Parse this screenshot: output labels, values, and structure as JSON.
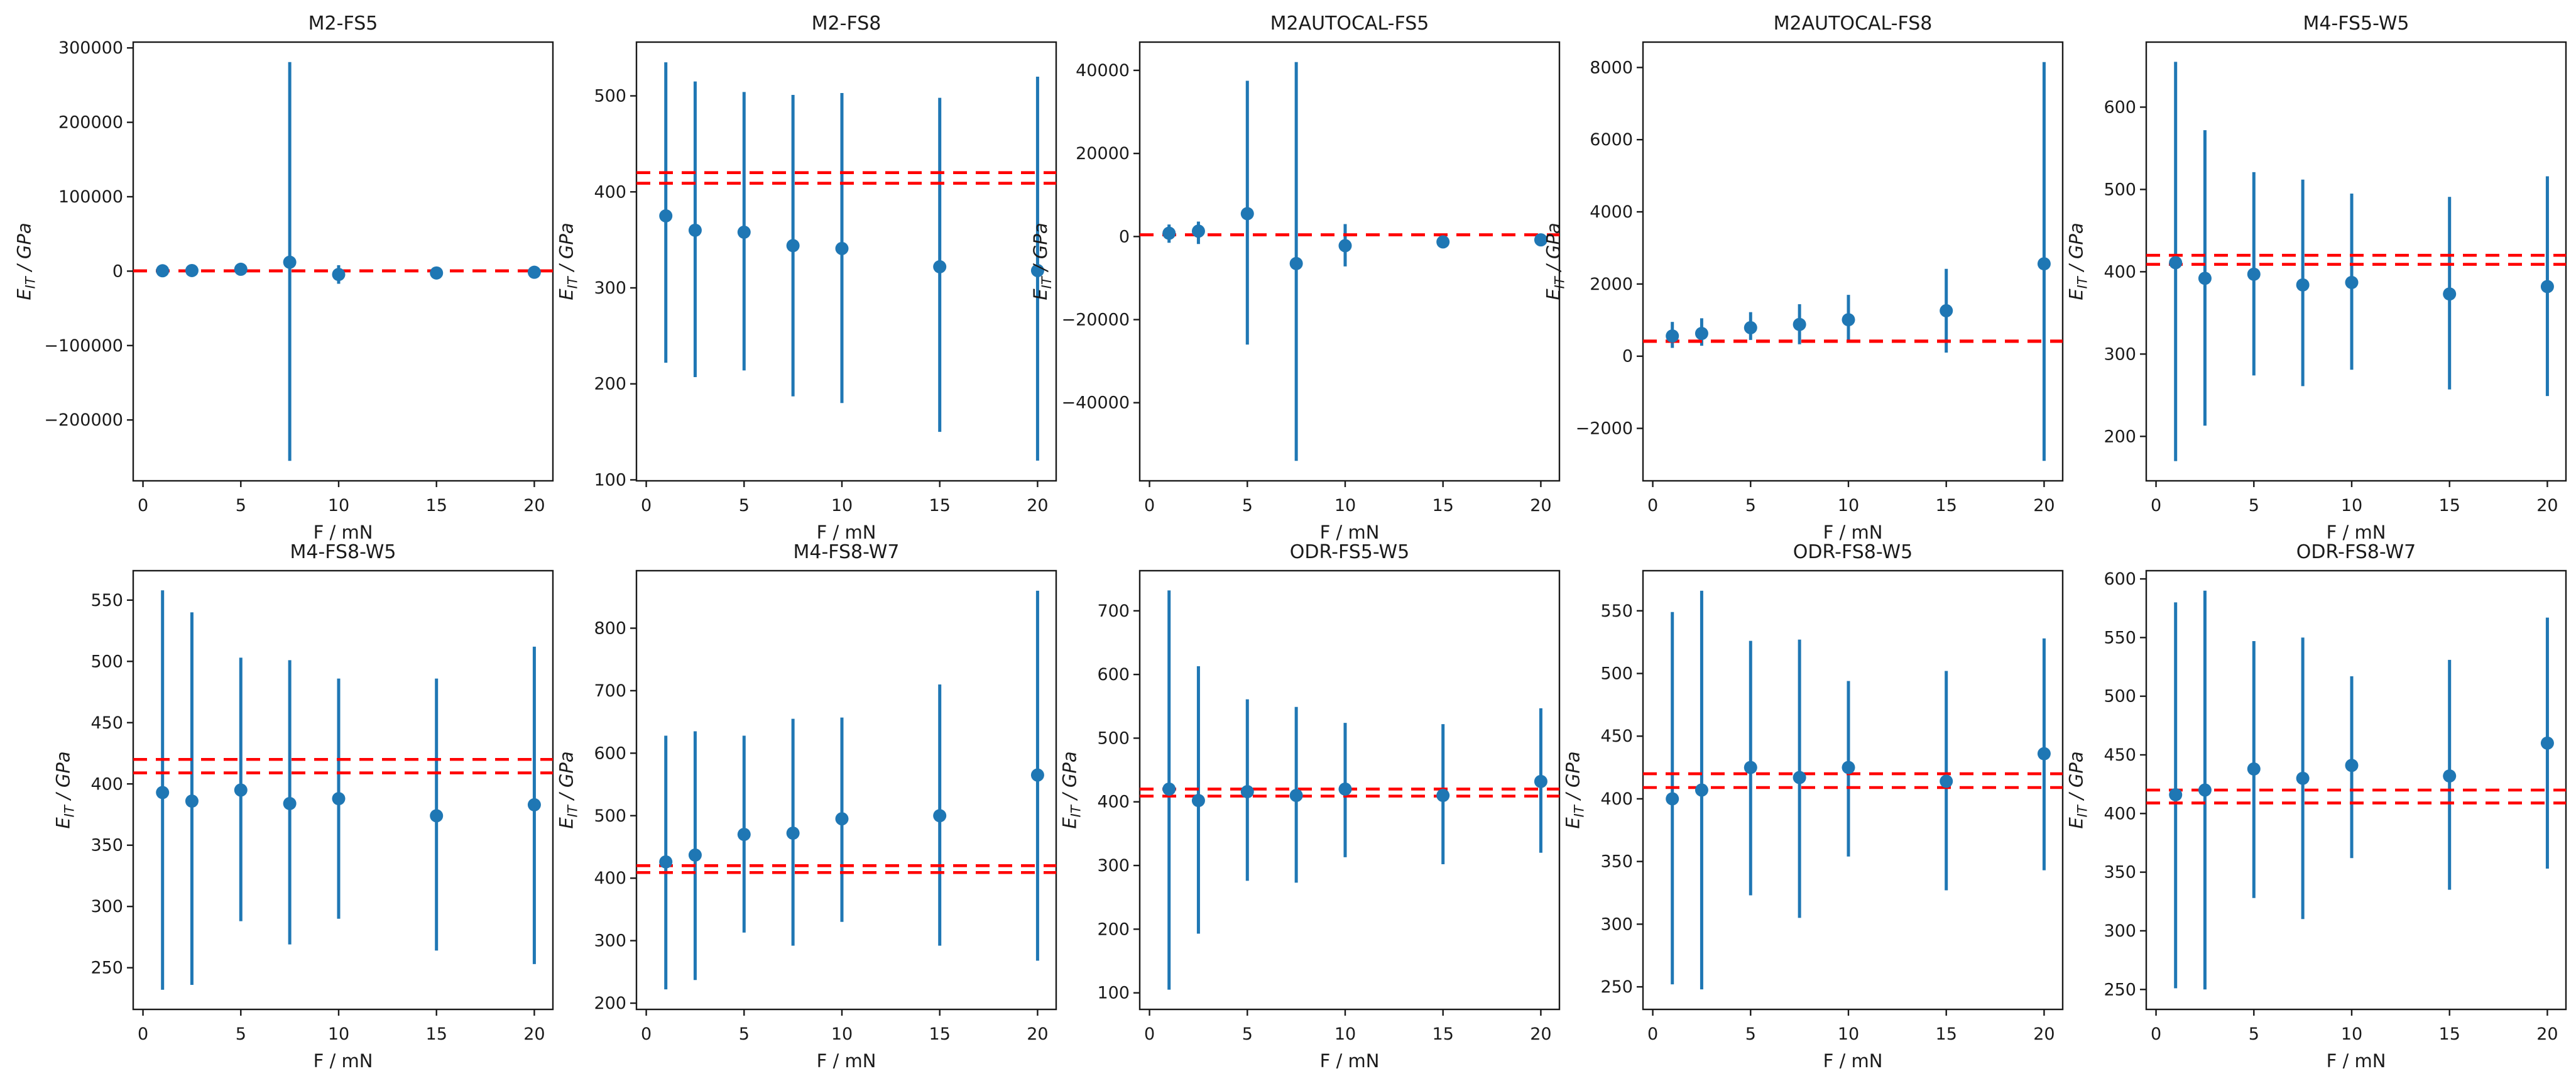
{
  "figure": {
    "kind": "matplotlib-errorbar-grid",
    "rows": 2,
    "cols": 5,
    "xlabel": "F / mN",
    "ylabel_main": "E",
    "ylabel_sub": "IT",
    "ylabel_rest": " / GPa",
    "colors": {
      "marker_blue": "#1f77b4",
      "ref_red": "#ff0000",
      "axis_black": "#1a1a1a",
      "background": "#ffffff"
    },
    "x_ticks": [
      0,
      5,
      10,
      15,
      20
    ],
    "xlim": [
      -0.5,
      20.95
    ],
    "ref_lines": [
      409,
      420
    ]
  },
  "chart_data": [
    {
      "type": "scatter",
      "title": "M2-FS5",
      "xlabel": "F / mN",
      "ylabel": "E_IT / GPa",
      "x": [
        1,
        2.5,
        5,
        7.5,
        10,
        15,
        20
      ],
      "y": [
        500,
        800,
        2500,
        12000,
        -4500,
        -2500,
        -1500
      ],
      "y_err_low": [
        -2500,
        -2500,
        -4000,
        -255000,
        -17000,
        -6000,
        -5500
      ],
      "y_err_high": [
        3500,
        4000,
        9000,
        281000,
        8000,
        1000,
        2500
      ],
      "ref_lines": [
        409,
        420
      ],
      "yticks": [
        -200000,
        -100000,
        0,
        100000,
        200000,
        300000
      ],
      "ylim": [
        -281800,
        307800
      ]
    },
    {
      "type": "scatter",
      "title": "M2-FS8",
      "xlabel": "F / mN",
      "ylabel": "E_IT / GPa",
      "x": [
        1,
        2.5,
        5,
        7.5,
        10,
        15,
        20
      ],
      "y": [
        375,
        360,
        358,
        344,
        341,
        322,
        318
      ],
      "y_err_low": [
        222,
        207,
        214,
        187,
        180,
        150,
        120
      ],
      "y_err_high": [
        535,
        515,
        504,
        501,
        503,
        498,
        520
      ],
      "ref_lines": [
        409,
        420
      ],
      "yticks": [
        100,
        200,
        300,
        400,
        500
      ],
      "ylim": [
        99,
        556
      ]
    },
    {
      "type": "scatter",
      "title": "M2AUTOCAL-FS5",
      "xlabel": "F / mN",
      "ylabel": "E_IT / GPa",
      "x": [
        1,
        2.5,
        5,
        7.5,
        10,
        15,
        20
      ],
      "y": [
        800,
        1300,
        5500,
        -6500,
        -2200,
        -1300,
        -800
      ],
      "y_err_low": [
        -1500,
        -1800,
        -26000,
        -54000,
        -7200,
        -2800,
        -2300
      ],
      "y_err_high": [
        2900,
        3600,
        37500,
        42000,
        3000,
        300,
        700
      ],
      "ref_lines": [
        409,
        420
      ],
      "yticks": [
        -40000,
        -20000,
        0,
        20000,
        40000
      ],
      "ylim": [
        -58800,
        46800
      ]
    },
    {
      "type": "scatter",
      "title": "M2AUTOCAL-FS8",
      "xlabel": "F / mN",
      "ylabel": "E_IT / GPa",
      "x": [
        1,
        2.5,
        5,
        7.5,
        10,
        15,
        20
      ],
      "y": [
        560,
        630,
        790,
        880,
        1010,
        1260,
        2560
      ],
      "y_err_low": [
        230,
        290,
        450,
        330,
        430,
        100,
        -2900
      ],
      "y_err_high": [
        950,
        1050,
        1220,
        1440,
        1700,
        2420,
        8150
      ],
      "ref_lines": [
        409,
        420
      ],
      "yticks": [
        -2000,
        0,
        2000,
        4000,
        6000,
        8000
      ],
      "ylim": [
        -3453,
        8703
      ]
    },
    {
      "type": "scatter",
      "title": "M4-FS5-W5",
      "xlabel": "F / mN",
      "ylabel": "E_IT / GPa",
      "x": [
        1,
        2.5,
        5,
        7.5,
        10,
        15,
        20
      ],
      "y": [
        411,
        392,
        397,
        384,
        387,
        373,
        382
      ],
      "y_err_low": [
        170,
        213,
        274,
        261,
        281,
        257,
        249
      ],
      "y_err_high": [
        655,
        572,
        521,
        512,
        495,
        491,
        516
      ],
      "ref_lines": [
        409,
        420
      ],
      "yticks": [
        200,
        300,
        400,
        500,
        600
      ],
      "ylim": [
        146,
        679
      ]
    },
    {
      "type": "scatter",
      "title": "M4-FS8-W5",
      "xlabel": "F / mN",
      "ylabel": "E_IT / GPa",
      "x": [
        1,
        2.5,
        5,
        7.5,
        10,
        15,
        20
      ],
      "y": [
        393,
        386,
        395,
        384,
        388,
        374,
        383
      ],
      "y_err_low": [
        232,
        236,
        288,
        269,
        290,
        264,
        253
      ],
      "y_err_high": [
        558,
        540,
        503,
        501,
        486,
        486,
        512
      ],
      "ref_lines": [
        409,
        420
      ],
      "yticks": [
        250,
        300,
        350,
        400,
        450,
        500,
        550
      ],
      "ylim": [
        216,
        574
      ]
    },
    {
      "type": "scatter",
      "title": "M4-FS8-W7",
      "xlabel": "F / mN",
      "ylabel": "E_IT / GPa",
      "x": [
        1,
        2.5,
        5,
        7.5,
        10,
        15,
        20
      ],
      "y": [
        426,
        437,
        470,
        472,
        495,
        500,
        565
      ],
      "y_err_low": [
        222,
        237,
        313,
        292,
        330,
        292,
        268
      ],
      "y_err_high": [
        628,
        635,
        628,
        655,
        657,
        710,
        860
      ],
      "ref_lines": [
        409,
        420
      ],
      "yticks": [
        200,
        300,
        400,
        500,
        600,
        700,
        800
      ],
      "ylim": [
        190,
        892
      ]
    },
    {
      "type": "scatter",
      "title": "ODR-FS5-W5",
      "xlabel": "F / mN",
      "ylabel": "E_IT / GPa",
      "x": [
        1,
        2.5,
        5,
        7.5,
        10,
        15,
        20
      ],
      "y": [
        420,
        402,
        416,
        410,
        420,
        410,
        432
      ],
      "y_err_low": [
        105,
        193,
        276,
        273,
        313,
        302,
        320
      ],
      "y_err_high": [
        732,
        613,
        561,
        549,
        524,
        522,
        547
      ],
      "ref_lines": [
        409,
        420
      ],
      "yticks": [
        100,
        200,
        300,
        400,
        500,
        600,
        700
      ],
      "ylim": [
        74,
        763
      ]
    },
    {
      "type": "scatter",
      "title": "ODR-FS8-W5",
      "xlabel": "F / mN",
      "ylabel": "E_IT / GPa",
      "x": [
        1,
        2.5,
        5,
        7.5,
        10,
        15,
        20
      ],
      "y": [
        400,
        407,
        425,
        417,
        425,
        414,
        436
      ],
      "y_err_low": [
        252,
        248,
        323,
        305,
        354,
        327,
        343
      ],
      "y_err_high": [
        549,
        566,
        526,
        527,
        494,
        502,
        528
      ],
      "ref_lines": [
        409,
        420
      ],
      "yticks": [
        250,
        300,
        350,
        400,
        450,
        500,
        550
      ],
      "ylim": [
        232,
        582
      ]
    },
    {
      "type": "scatter",
      "title": "ODR-FS8-W7",
      "xlabel": "F / mN",
      "ylabel": "E_IT / GPa",
      "x": [
        1,
        2.5,
        5,
        7.5,
        10,
        15,
        20
      ],
      "y": [
        416,
        420,
        438,
        430,
        441,
        432,
        460
      ],
      "y_err_low": [
        251,
        250,
        328,
        310,
        362,
        335,
        353
      ],
      "y_err_high": [
        580,
        590,
        547,
        550,
        517,
        531,
        567
      ],
      "ref_lines": [
        409,
        420
      ],
      "yticks": [
        250,
        300,
        350,
        400,
        450,
        500,
        550,
        600
      ],
      "ylim": [
        233,
        607
      ]
    }
  ]
}
